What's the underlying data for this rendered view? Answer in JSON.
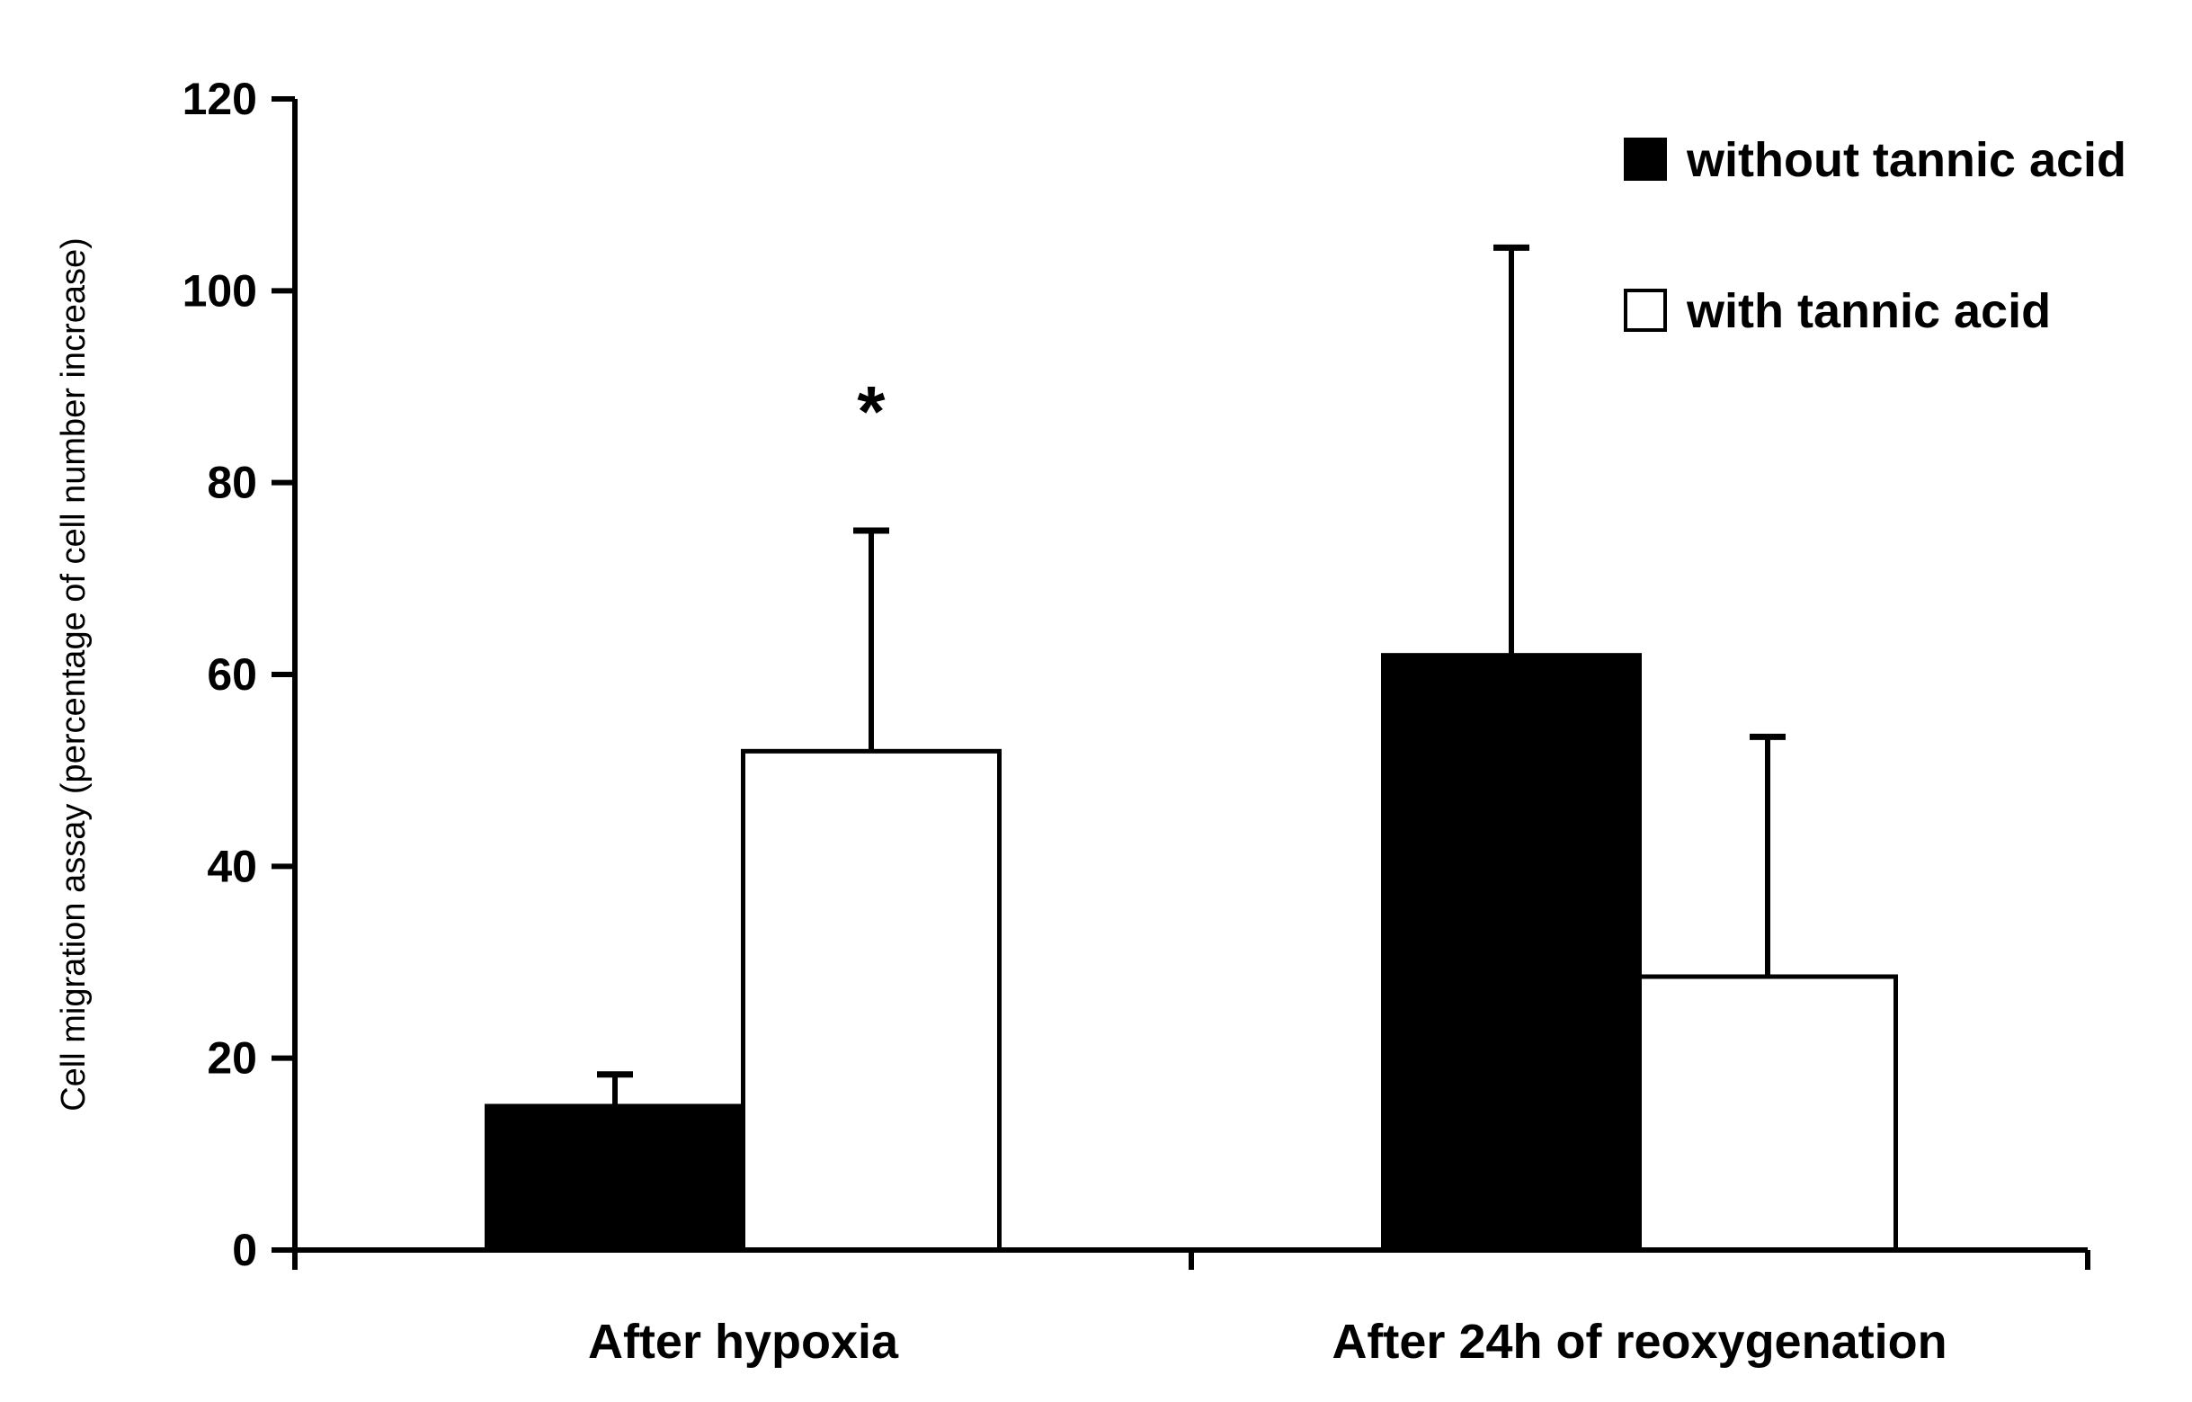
{
  "chart_data": {
    "type": "bar",
    "title": "",
    "xlabel": "",
    "ylabel": "Cell migration assay (percentage of cell number increase)",
    "categories": [
      "After hypoxia",
      "After 24h of reoxygenation"
    ],
    "ylim": [
      0,
      120
    ],
    "yticks": [
      0,
      20,
      40,
      60,
      80,
      100,
      120
    ],
    "grid": false,
    "legend_position": "top-right",
    "series": [
      {
        "name": "without tannic acid",
        "color": "#000000",
        "values": [
          15,
          62
        ],
        "errors": [
          3.3,
          42.5
        ]
      },
      {
        "name": "with tannic acid",
        "color": "#ffffff",
        "values": [
          52,
          28.5
        ],
        "errors": [
          23,
          25
        ]
      }
    ],
    "annotations": [
      {
        "text": "*",
        "category": "After hypoxia",
        "series": "with tannic acid"
      }
    ]
  }
}
